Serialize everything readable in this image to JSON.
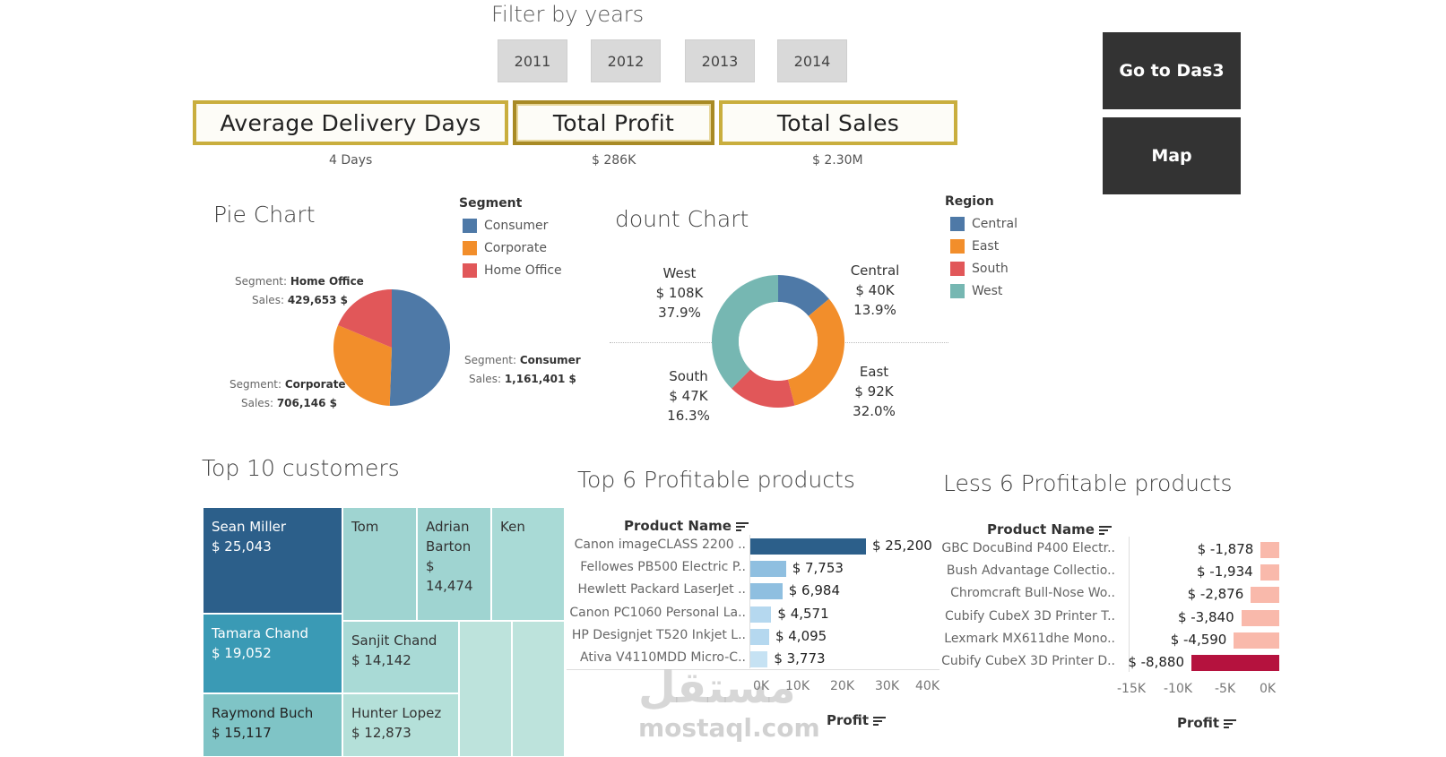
{
  "filter": {
    "title": "Filter by years",
    "years": [
      "2011",
      "2012",
      "2013",
      "2014"
    ]
  },
  "kpis": [
    {
      "title": "Average Delivery Days",
      "value": "4 Days"
    },
    {
      "title": "Total Profit",
      "value": "$ 286K"
    },
    {
      "title": "Total Sales",
      "value": "$ 2.30M"
    }
  ],
  "nav": {
    "das3": "Go to Das3",
    "map": "Map"
  },
  "colors": {
    "consumer": "#4e79a7",
    "corporate": "#f28e2b",
    "home_office": "#e15759",
    "central": "#4e79a7",
    "east": "#f28e2b",
    "south": "#e15759",
    "west": "#76b7b2",
    "kpi_border": "#c9ae3e",
    "nav_bg": "#333333"
  },
  "pie": {
    "title": "Pie Chart",
    "legend_title": "Segment",
    "legend": [
      "Consumer",
      "Corporate",
      "Home Office"
    ],
    "tooltips": [
      {
        "seg_label": "Segment:",
        "seg": "Home Office",
        "sales_label": "Sales:",
        "sales": "429,653 $"
      },
      {
        "seg_label": "Segment:",
        "seg": "Consumer",
        "sales_label": "Sales:",
        "sales": "1,161,401 $"
      },
      {
        "seg_label": "Segment:",
        "seg": "Corporate",
        "sales_label": "Sales:",
        "sales": "706,146 $"
      }
    ]
  },
  "donut": {
    "title": "dount Chart",
    "legend_title": "Region",
    "legend": [
      "Central",
      "East",
      "South",
      "West"
    ],
    "labels": [
      {
        "name": "West",
        "value": "$ 108K",
        "pct": "37.9%"
      },
      {
        "name": "Central",
        "value": "$ 40K",
        "pct": "13.9%"
      },
      {
        "name": "South",
        "value": "$ 47K",
        "pct": "16.3%"
      },
      {
        "name": "East",
        "value": "$ 92K",
        "pct": "32.0%"
      }
    ]
  },
  "treemap": {
    "title": "Top 10 customers",
    "cells": [
      {
        "name": "Sean Miller",
        "value": "$ 25,043"
      },
      {
        "name": "Tom",
        "value": ""
      },
      {
        "name": "Adrian Barton",
        "value": "$ 14,474"
      },
      {
        "name": "Ken",
        "value": ""
      },
      {
        "name": "Tamara Chand",
        "value": "$ 19,052"
      },
      {
        "name": "Sanjit Chand",
        "value": "$ 14,142"
      },
      {
        "name": "Raymond Buch",
        "value": "$ 15,117"
      },
      {
        "name": "Hunter Lopez",
        "value": "$ 12,873"
      }
    ]
  },
  "top_products": {
    "title": "Top 6 Profitable products",
    "header": "Product Name",
    "axis_title": "Profit",
    "ticks": [
      "0K",
      "10K",
      "20K",
      "30K",
      "40K"
    ],
    "labels": [
      "Canon imageCLASS 2200 ..",
      "Fellowes PB500 Electric P..",
      "Hewlett Packard LaserJet ..",
      "Canon PC1060 Personal La..",
      "HP Designjet T520 Inkjet L..",
      "Ativa V4110MDD Micro-C.."
    ],
    "value_labels": [
      "$ 25,200",
      "$ 7,753",
      "$ 6,984",
      "$ 4,571",
      "$ 4,095",
      "$ 3,773"
    ]
  },
  "less_products": {
    "title": "Less 6 Profitable products",
    "header": "Product Name",
    "axis_title": "Profit",
    "ticks": [
      "-15K",
      "-10K",
      "-5K",
      "0K"
    ],
    "labels": [
      "GBC DocuBind P400 Electr..",
      "Bush Advantage Collectio..",
      "Chromcraft Bull-Nose Wo..",
      "Cubify CubeX 3D Printer T..",
      "Lexmark MX611dhe Mono..",
      "Cubify CubeX 3D Printer D.."
    ],
    "value_labels": [
      "$ -1,878",
      "$ -1,934",
      "$ -2,876",
      "$ -3,840",
      "$ -4,590",
      "$ -8,880"
    ]
  },
  "watermark": {
    "arabic": "مستقل",
    "latin": "mostaql.com"
  },
  "chart_data": [
    {
      "type": "pie",
      "title": "Pie Chart",
      "categories": [
        "Consumer",
        "Corporate",
        "Home Office"
      ],
      "values": [
        1161401,
        706146,
        429653
      ]
    },
    {
      "type": "pie",
      "title": "dount Chart",
      "categories": [
        "Central",
        "East",
        "South",
        "West"
      ],
      "values": [
        40,
        92,
        47,
        108
      ],
      "percent": [
        13.9,
        32.0,
        16.3,
        37.9
      ]
    },
    {
      "type": "bar",
      "title": "Top 6 Profitable products",
      "xlabel": "Profit",
      "ylabel": "Product Name",
      "categories": [
        "Canon imageCLASS 2200 ..",
        "Fellowes PB500 Electric P..",
        "Hewlett Packard LaserJet ..",
        "Canon PC1060 Personal La..",
        "HP Designjet T520 Inkjet L..",
        "Ativa V4110MDD Micro-C.."
      ],
      "values": [
        25200,
        7753,
        6984,
        4571,
        4095,
        3773
      ],
      "xlim": [
        0,
        40000
      ]
    },
    {
      "type": "bar",
      "title": "Less 6 Profitable products",
      "xlabel": "Profit",
      "ylabel": "Product Name",
      "categories": [
        "GBC DocuBind P400 Electr..",
        "Bush Advantage Collectio..",
        "Chromcraft Bull-Nose Wo..",
        "Cubify CubeX 3D Printer T..",
        "Lexmark MX611dhe Mono..",
        "Cubify CubeX 3D Printer D.."
      ],
      "values": [
        -1878,
        -1934,
        -2876,
        -3840,
        -4590,
        -8880
      ],
      "xlim": [
        -15000,
        0
      ]
    }
  ]
}
